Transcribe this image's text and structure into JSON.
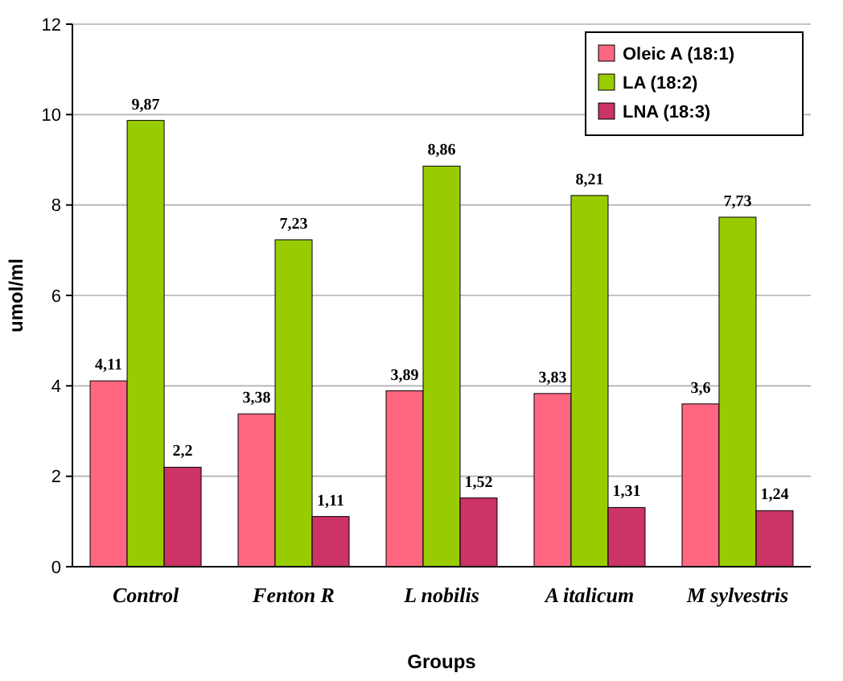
{
  "chart_data": {
    "type": "bar",
    "xlabel": "Groups",
    "ylabel": "umol/ml",
    "categories": [
      "Control",
      "Fenton R",
      "L nobilis",
      "A italicum",
      "M sylvestris"
    ],
    "series": [
      {
        "name": "Oleic A (18:1)",
        "color": "#ff6680",
        "values": [
          4.11,
          3.38,
          3.89,
          3.83,
          3.6
        ],
        "value_labels": [
          "4,11",
          "3,38",
          "3,89",
          "3,83",
          "3,6"
        ]
      },
      {
        "name": "LA (18:2)",
        "color": "#99cc00",
        "values": [
          9.87,
          7.23,
          8.86,
          8.21,
          7.73
        ],
        "value_labels": [
          "9,87",
          "7,23",
          "8,86",
          "8,21",
          "7,73"
        ]
      },
      {
        "name": "LNA (18:3)",
        "color": "#cc3366",
        "values": [
          2.2,
          1.11,
          1.52,
          1.31,
          1.24
        ],
        "value_labels": [
          "2,2",
          "1,11",
          "1,52",
          "1,31",
          "1,24"
        ]
      }
    ],
    "ylim": [
      0,
      12
    ],
    "yticks": [
      0,
      2,
      4,
      6,
      8,
      10,
      12
    ],
    "grid": "y",
    "legend": "top right"
  }
}
